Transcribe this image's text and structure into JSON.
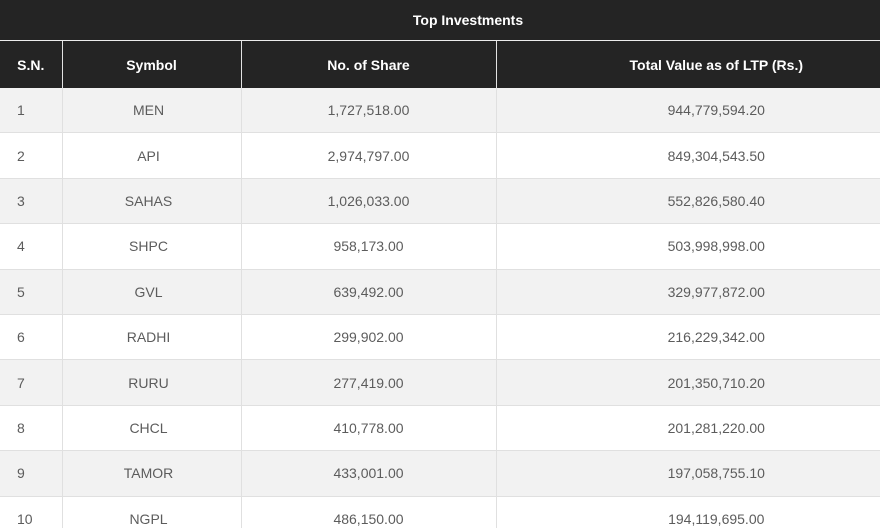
{
  "title": "Top Investments",
  "table": {
    "columns": [
      {
        "key": "sn",
        "label": "S.N."
      },
      {
        "key": "symbol",
        "label": "Symbol"
      },
      {
        "key": "shares",
        "label": "No. of Share"
      },
      {
        "key": "value",
        "label": "Total Value as of LTP (Rs.)"
      }
    ],
    "rows": [
      {
        "sn": "1",
        "symbol": "MEN",
        "shares": "1,727,518.00",
        "value": "944,779,594.20"
      },
      {
        "sn": "2",
        "symbol": "API",
        "shares": "2,974,797.00",
        "value": "849,304,543.50"
      },
      {
        "sn": "3",
        "symbol": "SAHAS",
        "shares": "1,026,033.00",
        "value": "552,826,580.40"
      },
      {
        "sn": "4",
        "symbol": "SHPC",
        "shares": "958,173.00",
        "value": "503,998,998.00"
      },
      {
        "sn": "5",
        "symbol": "GVL",
        "shares": "639,492.00",
        "value": "329,977,872.00"
      },
      {
        "sn": "6",
        "symbol": "RADHI",
        "shares": "299,902.00",
        "value": "216,229,342.00"
      },
      {
        "sn": "7",
        "symbol": "RURU",
        "shares": "277,419.00",
        "value": "201,350,710.20"
      },
      {
        "sn": "8",
        "symbol": "CHCL",
        "shares": "410,778.00",
        "value": "201,281,220.00"
      },
      {
        "sn": "9",
        "symbol": "TAMOR",
        "shares": "433,001.00",
        "value": "197,058,755.10"
      },
      {
        "sn": "10",
        "symbol": "NGPL",
        "shares": "486,150.00",
        "value": "194,119,695.00"
      }
    ]
  },
  "colors": {
    "header_bg": "#242424",
    "header_text": "#ffffff",
    "row_alt_bg": "#f2f2f2",
    "row_bg": "#ffffff",
    "body_text": "#5c5c5c",
    "grid_line": "#e0e0e0",
    "header_divider": "#e3e3e3"
  }
}
